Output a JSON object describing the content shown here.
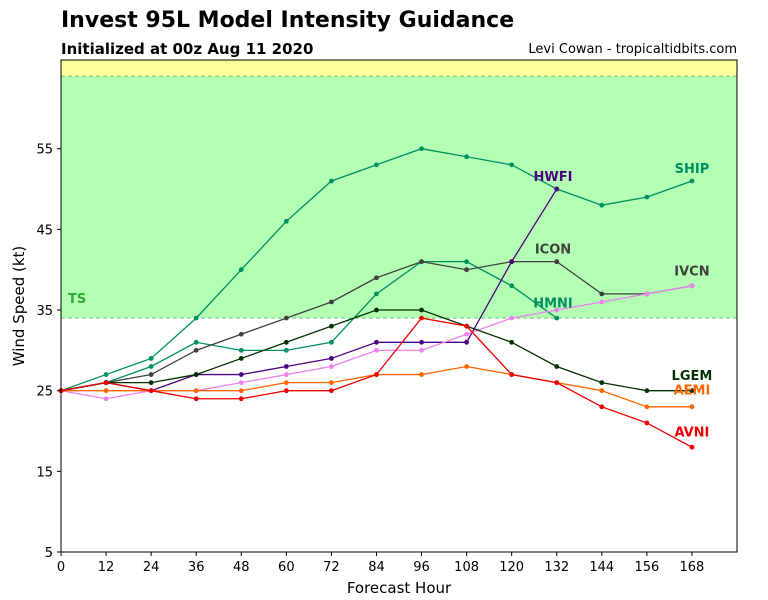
{
  "header": {
    "title": "Invest 95L Model Intensity Guidance",
    "subtitle": "Initialized at 00z Aug 11 2020",
    "credit": "Levi Cowan - tropicaltidbits.com"
  },
  "chart_data": {
    "type": "line",
    "title": "Invest 95L Model Intensity Guidance",
    "subtitle": "Initialized at 00z Aug 11 2020",
    "xlabel": "Forecast Hour",
    "ylabel": "Wind Speed (kt)",
    "xlim": [
      0,
      180
    ],
    "ylim": [
      5,
      66
    ],
    "xticks": [
      0,
      12,
      24,
      36,
      48,
      60,
      72,
      84,
      96,
      108,
      120,
      132,
      144,
      156,
      168
    ],
    "yticks": [
      5,
      15,
      25,
      35,
      45,
      55
    ],
    "grid": false,
    "bands": [
      {
        "name": "TS",
        "from": 34,
        "to": 64,
        "color": "#b3ffb3"
      },
      {
        "name": "",
        "from": 64,
        "to": 66,
        "color": "#ffff99"
      }
    ],
    "band_label": {
      "text": "TS",
      "color": "#33aa33"
    },
    "series": [
      {
        "name": "SHIP",
        "color": "#009060",
        "x": [
          0,
          12,
          24,
          36,
          48,
          60,
          72,
          84,
          96,
          108,
          120,
          132,
          144,
          156,
          168
        ],
        "values": [
          25,
          27,
          29,
          34,
          40,
          46,
          51,
          53,
          55,
          54,
          53,
          50,
          48,
          49,
          51
        ]
      },
      {
        "name": "HMNI",
        "color": "#009060",
        "x": [
          0,
          12,
          24,
          36,
          48,
          60,
          72,
          84,
          96,
          108,
          120,
          132
        ],
        "values": [
          25,
          26,
          28,
          31,
          30,
          30,
          31,
          37,
          41,
          41,
          38,
          34
        ]
      },
      {
        "name": "ICON",
        "color": "#404040",
        "x": [
          0,
          12,
          24,
          36,
          48,
          60,
          72,
          84,
          96,
          108,
          120,
          132
        ],
        "values": [
          25,
          26,
          27,
          30,
          32,
          34,
          36,
          39,
          41,
          40,
          41,
          41
        ]
      },
      {
        "name": "IVCN",
        "color": "#404040",
        "x": [
          132,
          144,
          156,
          168
        ],
        "values": [
          41,
          37,
          37,
          38
        ]
      },
      {
        "name": "HWFI",
        "color": "#4b0082",
        "x": [
          0,
          12,
          24,
          36,
          48,
          60,
          72,
          84,
          96,
          108,
          120,
          132
        ],
        "values": [
          25,
          26,
          25,
          27,
          27,
          28,
          29,
          31,
          31,
          31,
          41,
          50
        ]
      },
      {
        "name": "",
        "color": "#ee82ee",
        "x": [
          0,
          12,
          24,
          36,
          48,
          60,
          72,
          84,
          96,
          108,
          120,
          132,
          144,
          156,
          168
        ],
        "values": [
          25,
          24,
          25,
          25,
          26,
          27,
          28,
          30,
          30,
          32,
          34,
          35,
          36,
          37,
          38
        ]
      },
      {
        "name": "LGEM",
        "color": "#003300",
        "x": [
          0,
          12,
          24,
          36,
          48,
          60,
          72,
          84,
          96,
          108,
          120,
          132,
          144,
          156,
          168
        ],
        "values": [
          25,
          26,
          26,
          27,
          29,
          31,
          33,
          35,
          35,
          33,
          31,
          28,
          26,
          25,
          25
        ]
      },
      {
        "name": "AEMI",
        "color": "#ff6600",
        "x": [
          0,
          12,
          24,
          36,
          48,
          60,
          72,
          84,
          96,
          108,
          120,
          132,
          144,
          156,
          168
        ],
        "values": [
          25,
          25,
          25,
          25,
          25,
          26,
          26,
          27,
          27,
          28,
          27,
          26,
          25,
          23,
          23
        ]
      },
      {
        "name": "AVNI",
        "color": "#ee0000",
        "x": [
          0,
          12,
          24,
          36,
          48,
          60,
          72,
          84,
          96,
          108,
          120,
          132,
          144,
          156,
          168
        ],
        "values": [
          25,
          26,
          25,
          24,
          24,
          25,
          25,
          27,
          34,
          33,
          27,
          26,
          23,
          21,
          18
        ]
      }
    ],
    "labels": [
      {
        "text": "SHIP",
        "x": 168,
        "y": 52,
        "color": "#009060"
      },
      {
        "text": "HWFI",
        "x": 131,
        "y": 51,
        "color": "#4b0082"
      },
      {
        "text": "ICON",
        "x": 131,
        "y": 42,
        "color": "#404040"
      },
      {
        "text": "IVCN",
        "x": 168,
        "y": 39.3,
        "color": "#404040"
      },
      {
        "text": "HMNI",
        "x": 131,
        "y": 35.3,
        "color": "#009060"
      },
      {
        "text": "LGEM",
        "x": 168,
        "y": 26.3,
        "color": "#003300"
      },
      {
        "text": "AEMI",
        "x": 168,
        "y": 24.5,
        "color": "#ff6600"
      },
      {
        "text": "AVNI",
        "x": 168,
        "y": 19.3,
        "color": "#ee0000"
      }
    ]
  }
}
